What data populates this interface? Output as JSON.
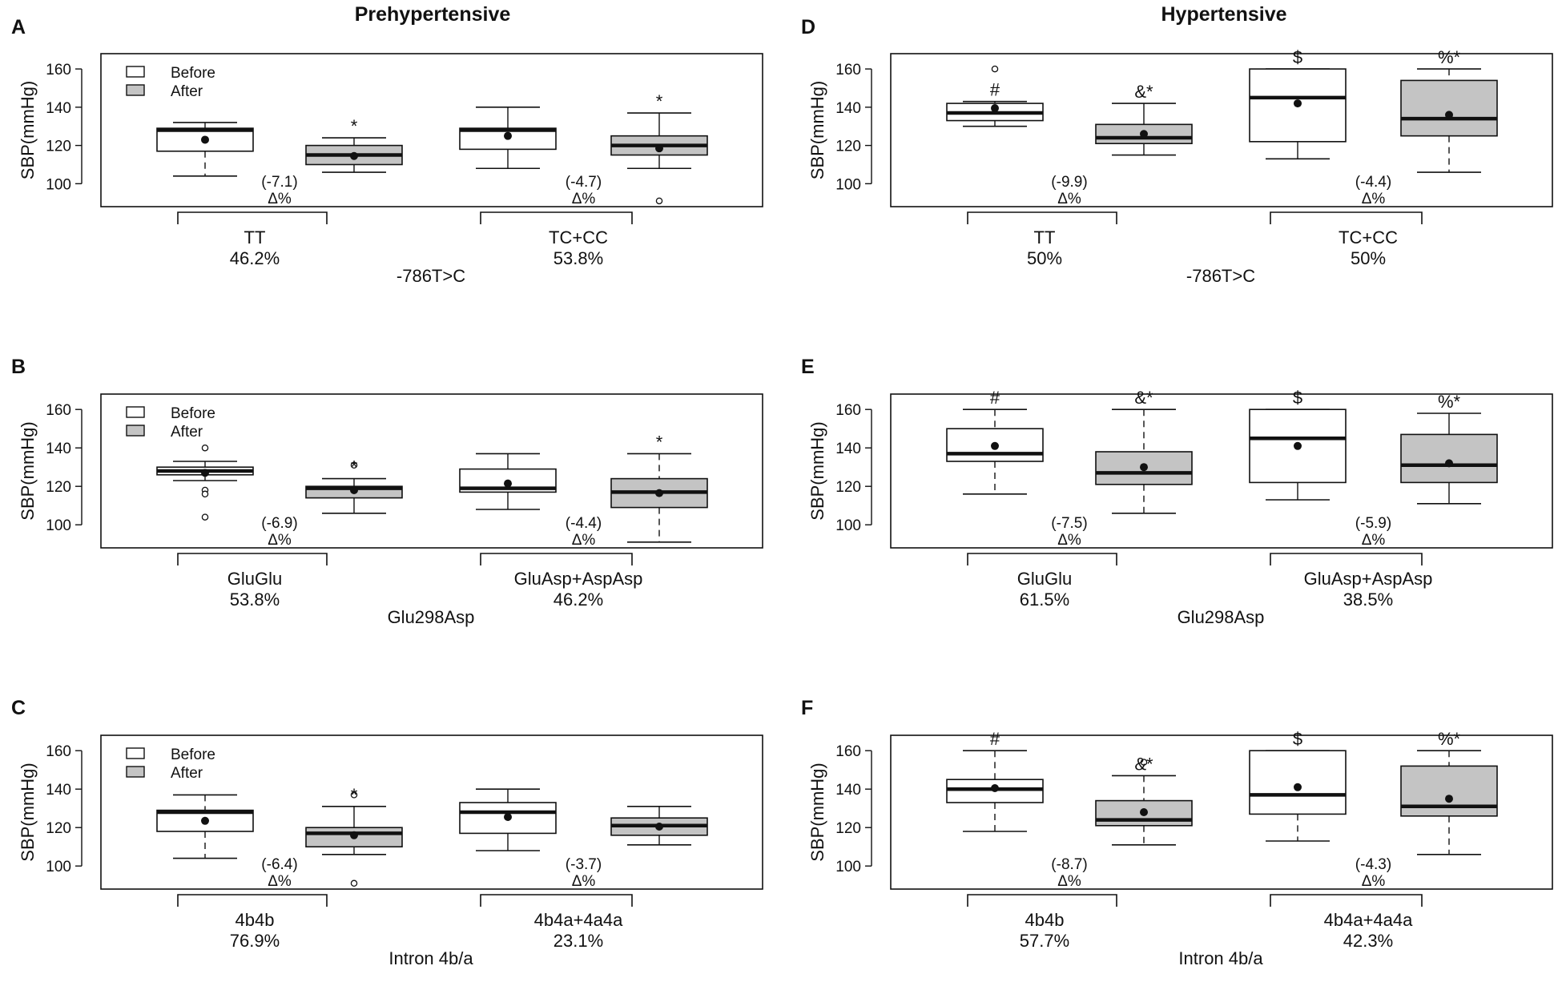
{
  "figure": {
    "column_titles": [
      "Prehypertensive",
      "Hypertensive"
    ],
    "legend": {
      "before": "Before",
      "after": "After"
    },
    "delta_label": "Δ%",
    "colors": {
      "before_fill": "#ffffff",
      "after_fill": "#c4c4c4",
      "stroke": "#111111"
    }
  },
  "chart_data": [
    {
      "panel": "A",
      "type": "boxplot",
      "title": "Prehypertensive",
      "legend": true,
      "ylabel": "SBP(mmHg)",
      "ylim": [
        88,
        168
      ],
      "yticks": [
        100,
        120,
        140,
        160
      ],
      "xlabel": "-786T>C",
      "groups": [
        {
          "name": "TT",
          "pct": "46.2%",
          "delta": "(-7.1)",
          "before": {
            "lo": 104,
            "q1": 117,
            "med": 128,
            "q3": 129,
            "hi": 132,
            "mean": 123,
            "outliers": [],
            "mark": ""
          },
          "after": {
            "lo": 106,
            "q1": 110,
            "med": 115,
            "q3": 120,
            "hi": 124,
            "mean": 114.5,
            "outliers": [],
            "mark": "*"
          }
        },
        {
          "name": "TC+CC",
          "pct": "53.8%",
          "delta": "(-4.7)",
          "before": {
            "lo": 108,
            "q1": 118,
            "med": 128,
            "q3": 129,
            "hi": 140,
            "mean": 125,
            "outliers": [],
            "mark": ""
          },
          "after": {
            "lo": 108,
            "q1": 115,
            "med": 120,
            "q3": 125,
            "hi": 137,
            "mean": 118.5,
            "outliers": [
              91
            ],
            "mark": "*"
          }
        }
      ]
    },
    {
      "panel": "B",
      "type": "boxplot",
      "title": "",
      "legend": true,
      "ylabel": "SBP(mmHg)",
      "ylim": [
        88,
        168
      ],
      "yticks": [
        100,
        120,
        140,
        160
      ],
      "xlabel": "Glu298Asp",
      "groups": [
        {
          "name": "GluGlu",
          "pct": "53.8%",
          "delta": "(-6.9)",
          "before": {
            "lo": 123,
            "q1": 126,
            "med": 128,
            "q3": 130,
            "hi": 133,
            "mean": 127,
            "outliers": [
              140,
              118,
              116,
              104
            ],
            "mark": ""
          },
          "after": {
            "lo": 106,
            "q1": 114,
            "med": 119,
            "q3": 120,
            "hi": 124,
            "mean": 118,
            "outliers": [
              131
            ],
            "mark": "*"
          }
        },
        {
          "name": "GluAsp+AspAsp",
          "pct": "46.2%",
          "delta": "(-4.4)",
          "before": {
            "lo": 108,
            "q1": 117,
            "med": 119,
            "q3": 129,
            "hi": 137,
            "mean": 121.5,
            "outliers": [],
            "mark": ""
          },
          "after": {
            "lo": 91,
            "q1": 109,
            "med": 117,
            "q3": 124,
            "hi": 137,
            "mean": 116.5,
            "outliers": [],
            "mark": "*"
          }
        }
      ]
    },
    {
      "panel": "C",
      "type": "boxplot",
      "title": "",
      "legend": true,
      "ylabel": "SBP(mmHg)",
      "ylim": [
        88,
        168
      ],
      "yticks": [
        100,
        120,
        140,
        160
      ],
      "xlabel": "Intron 4b/a",
      "groups": [
        {
          "name": "4b4b",
          "pct": "76.9%",
          "delta": "(-6.4)",
          "before": {
            "lo": 104,
            "q1": 118,
            "med": 128,
            "q3": 129,
            "hi": 137,
            "mean": 123.5,
            "outliers": [],
            "mark": ""
          },
          "after": {
            "lo": 106,
            "q1": 110,
            "med": 117,
            "q3": 120,
            "hi": 131,
            "mean": 116,
            "outliers": [
              137,
              91
            ],
            "mark": "*"
          }
        },
        {
          "name": "4b4a+4a4a",
          "pct": "23.1%",
          "delta": "(-3.7)",
          "before": {
            "lo": 108,
            "q1": 117,
            "med": 128,
            "q3": 133,
            "hi": 140,
            "mean": 125.5,
            "outliers": [],
            "mark": ""
          },
          "after": {
            "lo": 111,
            "q1": 116,
            "med": 121,
            "q3": 125,
            "hi": 131,
            "mean": 120.5,
            "outliers": [],
            "mark": ""
          }
        }
      ]
    },
    {
      "panel": "D",
      "type": "boxplot",
      "title": "Hypertensive",
      "legend": false,
      "ylabel": "SBP(mmHg)",
      "ylim": [
        88,
        168
      ],
      "yticks": [
        100,
        120,
        140,
        160
      ],
      "xlabel": "-786T>C",
      "groups": [
        {
          "name": "TT",
          "pct": "50%",
          "delta": "(-9.9)",
          "before": {
            "lo": 130,
            "q1": 133,
            "med": 137,
            "q3": 142,
            "hi": 143,
            "mean": 139.5,
            "outliers": [
              160
            ],
            "mark": "#"
          },
          "after": {
            "lo": 115,
            "q1": 121,
            "med": 124,
            "q3": 131,
            "hi": 142,
            "mean": 126,
            "outliers": [],
            "mark": "&*"
          }
        },
        {
          "name": "TC+CC",
          "pct": "50%",
          "delta": "(-4.4)",
          "before": {
            "lo": 113,
            "q1": 122,
            "med": 145,
            "q3": 160,
            "hi": 160,
            "mean": 142,
            "outliers": [],
            "mark": "$"
          },
          "after": {
            "lo": 106,
            "q1": 125,
            "med": 134,
            "q3": 154,
            "hi": 160,
            "mean": 136,
            "outliers": [],
            "mark": "%*"
          }
        }
      ]
    },
    {
      "panel": "E",
      "type": "boxplot",
      "title": "",
      "legend": false,
      "ylabel": "SBP(mmHg)",
      "ylim": [
        88,
        168
      ],
      "yticks": [
        100,
        120,
        140,
        160
      ],
      "xlabel": "Glu298Asp",
      "groups": [
        {
          "name": "GluGlu",
          "pct": "61.5%",
          "delta": "(-7.5)",
          "before": {
            "lo": 116,
            "q1": 133,
            "med": 137,
            "q3": 150,
            "hi": 160,
            "mean": 141,
            "outliers": [],
            "mark": "#"
          },
          "after": {
            "lo": 106,
            "q1": 121,
            "med": 127,
            "q3": 138,
            "hi": 160,
            "mean": 130,
            "outliers": [],
            "mark": "&*"
          }
        },
        {
          "name": "GluAsp+AspAsp",
          "pct": "38.5%",
          "delta": "(-5.9)",
          "before": {
            "lo": 113,
            "q1": 122,
            "med": 145,
            "q3": 160,
            "hi": 160,
            "mean": 141,
            "outliers": [],
            "mark": "$"
          },
          "after": {
            "lo": 111,
            "q1": 122,
            "med": 131,
            "q3": 147,
            "hi": 158,
            "mean": 132,
            "outliers": [],
            "mark": "%*"
          }
        }
      ]
    },
    {
      "panel": "F",
      "type": "boxplot",
      "title": "",
      "legend": false,
      "ylabel": "SBP(mmHg)",
      "ylim": [
        88,
        168
      ],
      "yticks": [
        100,
        120,
        140,
        160
      ],
      "xlabel": "Intron 4b/a",
      "groups": [
        {
          "name": "4b4b",
          "pct": "57.7%",
          "delta": "(-8.7)",
          "before": {
            "lo": 118,
            "q1": 133,
            "med": 140,
            "q3": 145,
            "hi": 160,
            "mean": 140.5,
            "outliers": [],
            "mark": "#"
          },
          "after": {
            "lo": 111,
            "q1": 121,
            "med": 124,
            "q3": 134,
            "hi": 147,
            "mean": 128,
            "outliers": [
              154
            ],
            "mark": "&*"
          }
        },
        {
          "name": "4b4a+4a4a",
          "pct": "42.3%",
          "delta": "(-4.3)",
          "before": {
            "lo": 113,
            "q1": 127,
            "med": 137,
            "q3": 160,
            "hi": 160,
            "mean": 141,
            "outliers": [],
            "mark": "$"
          },
          "after": {
            "lo": 106,
            "q1": 126,
            "med": 131,
            "q3": 152,
            "hi": 160,
            "mean": 135,
            "outliers": [],
            "mark": "%*"
          }
        }
      ]
    }
  ]
}
